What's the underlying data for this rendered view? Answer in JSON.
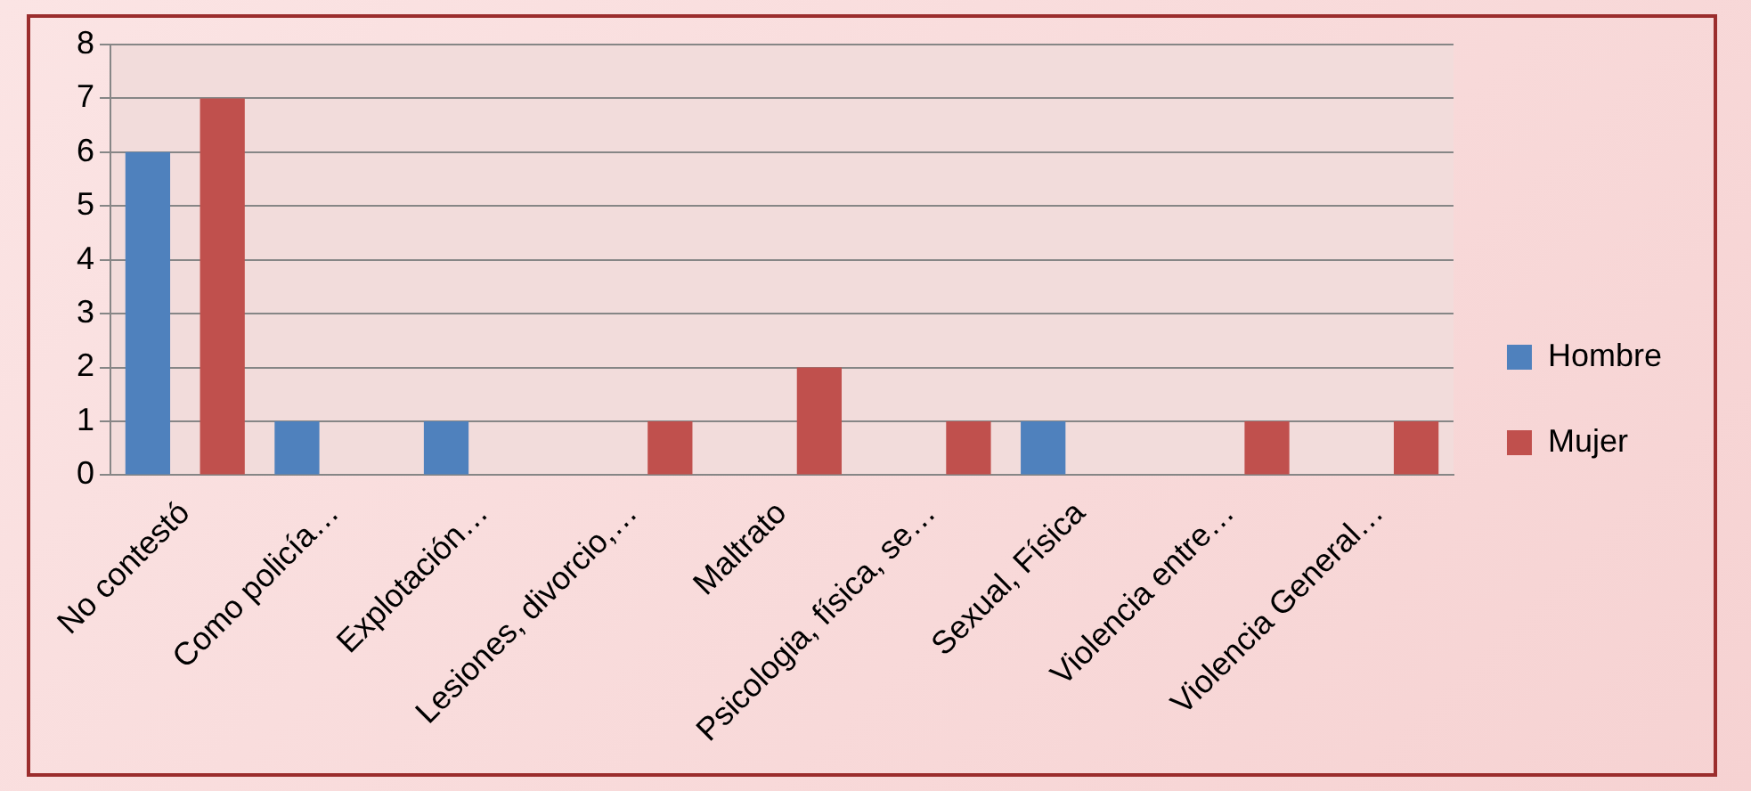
{
  "chart_data": {
    "type": "bar",
    "categories": [
      "No contestó",
      "Como policía…",
      "Explotación…",
      "Lesiones, divorcio,…",
      "Maltrato",
      "Psicologia, física, se…",
      "Sexual, Física",
      "Violencia entre…",
      "Violencia General…"
    ],
    "series": [
      {
        "name": "Hombre",
        "color": "#4f81bd",
        "values": [
          6,
          1,
          1,
          0,
          0,
          0,
          1,
          0,
          0
        ]
      },
      {
        "name": "Mujer",
        "color": "#c0504d",
        "values": [
          7,
          0,
          0,
          1,
          2,
          1,
          0,
          1,
          1
        ]
      }
    ],
    "ylim": [
      0,
      8
    ],
    "yticks": [
      0,
      1,
      2,
      3,
      4,
      5,
      6,
      7,
      8
    ],
    "grid": "y",
    "legend": "right"
  }
}
